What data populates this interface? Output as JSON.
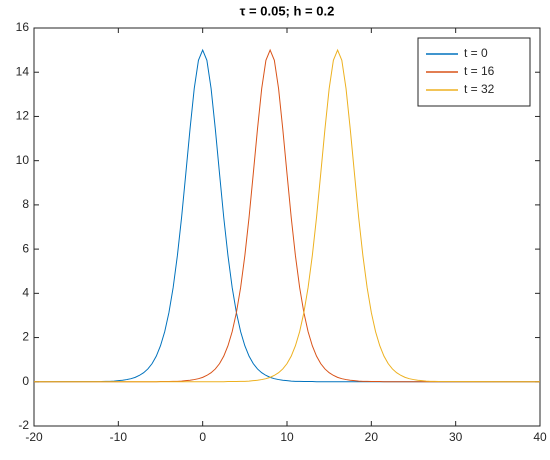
{
  "chart_data": {
    "type": "line",
    "title": "τ = 0.05; h = 0.2",
    "x": [
      -20,
      -12,
      -11.5,
      -11,
      -10.5,
      -10,
      -9.5,
      -9,
      -8.5,
      -8,
      -7.5,
      -7,
      -6.5,
      -6,
      -5.5,
      -5,
      -4.5,
      -4,
      -3.5,
      -3,
      -2.5,
      -2,
      -1.5,
      -1,
      -0.5,
      0,
      0.5,
      1,
      1.5,
      2,
      2.5,
      3,
      3.5,
      4,
      4.5,
      5,
      5.5,
      6,
      6.5,
      7,
      7.5,
      8,
      8.5,
      9,
      9.5,
      10,
      10.5,
      11,
      11.5,
      12,
      12.5,
      13,
      13.5,
      14,
      14.5,
      15,
      15.5,
      16,
      16.5,
      17,
      17.5,
      18,
      18.5,
      19,
      19.5,
      20,
      20.5,
      21,
      21.5,
      22,
      22.5,
      23,
      23.5,
      24,
      24.5,
      25,
      25.5,
      26,
      26.5,
      27,
      27.5,
      28,
      40
    ],
    "series": [
      {
        "name": "t = 0",
        "color": "#0072BD",
        "values": [
          0,
          0.01,
          0.02,
          0.02,
          0.03,
          0.05,
          0.07,
          0.1,
          0.14,
          0.2,
          0.29,
          0.41,
          0.58,
          0.82,
          1.16,
          1.63,
          2.27,
          3.13,
          4.26,
          5.7,
          7.43,
          9.41,
          11.43,
          13.26,
          14.54,
          15,
          14.54,
          13.26,
          11.43,
          9.41,
          7.43,
          5.7,
          4.26,
          3.13,
          2.27,
          1.63,
          1.16,
          0.82,
          0.58,
          0.41,
          0.29,
          0.2,
          0.14,
          0.1,
          0.07,
          0.05,
          0.03,
          0.02,
          0.02,
          0.01,
          0.01,
          0.01,
          0,
          0,
          0,
          0,
          0,
          0,
          0,
          0,
          0,
          0,
          0,
          0,
          0,
          0,
          0,
          0,
          0,
          0,
          0,
          0,
          0,
          0,
          0,
          0,
          0,
          0,
          0,
          0,
          0,
          0,
          0
        ]
      },
      {
        "name": "t = 16",
        "color": "#D95319",
        "values": [
          0,
          0,
          0,
          0,
          0,
          0,
          0,
          0,
          0,
          0,
          0,
          0,
          0,
          0,
          0,
          0.01,
          0.01,
          0.01,
          0.02,
          0.02,
          0.03,
          0.05,
          0.07,
          0.1,
          0.14,
          0.2,
          0.29,
          0.41,
          0.58,
          0.82,
          1.16,
          1.63,
          2.27,
          3.13,
          4.26,
          5.7,
          7.43,
          9.41,
          11.43,
          13.26,
          14.54,
          15,
          14.54,
          13.26,
          11.43,
          9.41,
          7.43,
          5.7,
          4.26,
          3.13,
          2.27,
          1.63,
          1.16,
          0.82,
          0.58,
          0.41,
          0.29,
          0.2,
          0.14,
          0.1,
          0.07,
          0.05,
          0.03,
          0.02,
          0.02,
          0.01,
          0.01,
          0.01,
          0,
          0,
          0,
          0,
          0,
          0,
          0,
          0,
          0,
          0,
          0,
          0,
          0,
          0,
          0
        ]
      },
      {
        "name": "t = 32",
        "color": "#EDB120",
        "values": [
          0,
          0,
          0,
          0,
          0,
          0,
          0,
          0,
          0,
          0,
          0,
          0,
          0,
          0,
          0,
          0,
          0,
          0,
          0,
          0,
          0,
          0,
          0,
          0,
          0,
          0,
          0,
          0,
          0,
          0,
          0,
          0.01,
          0.01,
          0.01,
          0.02,
          0.02,
          0.03,
          0.05,
          0.07,
          0.1,
          0.14,
          0.2,
          0.29,
          0.41,
          0.58,
          0.82,
          1.16,
          1.63,
          2.27,
          3.13,
          4.26,
          5.7,
          7.43,
          9.41,
          11.43,
          13.26,
          14.54,
          15,
          14.54,
          13.26,
          11.43,
          9.41,
          7.43,
          5.7,
          4.26,
          3.13,
          2.27,
          1.63,
          1.16,
          0.82,
          0.58,
          0.41,
          0.29,
          0.2,
          0.14,
          0.1,
          0.07,
          0.05,
          0.03,
          0.02,
          0.02,
          0.01,
          0
        ]
      }
    ],
    "xlim": [
      -20,
      40
    ],
    "xticks": [
      -20,
      -10,
      0,
      10,
      20,
      30,
      40
    ],
    "ylim": [
      -2,
      16
    ],
    "yticks": [
      -2,
      0,
      2,
      4,
      6,
      8,
      10,
      12,
      14,
      16
    ],
    "grid": false,
    "legend": "upper right"
  }
}
